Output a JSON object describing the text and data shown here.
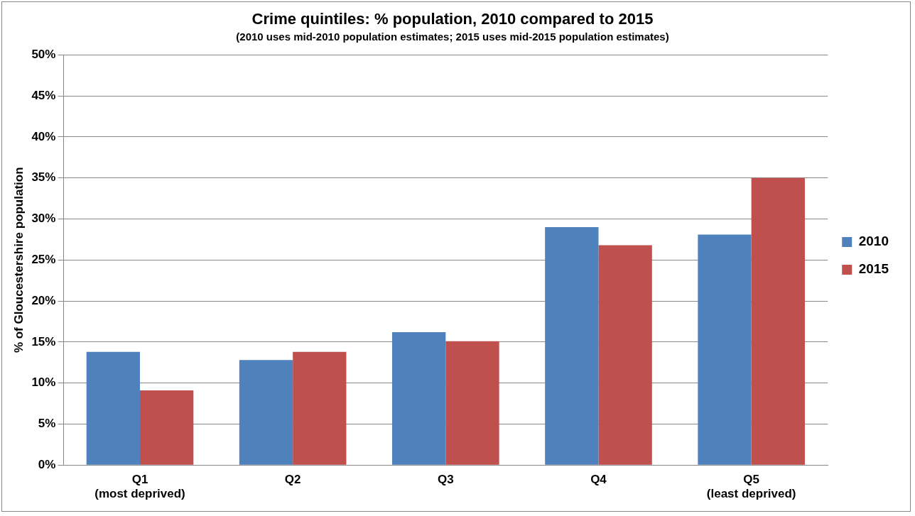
{
  "chart_data": {
    "type": "bar",
    "title": "Crime quintiles: % population, 2010 compared to 2015",
    "subtitle": "(2010 uses mid-2010 population estimates; 2015 uses mid-2015 population estimates)",
    "ylabel": "% of Gloucestershire population",
    "categories": [
      "Q1\n(most deprived)",
      "Q2",
      "Q3",
      "Q4",
      "Q5\n(least deprived)"
    ],
    "series": [
      {
        "name": "2010",
        "color": "#4f81bd",
        "values": [
          13.8,
          12.8,
          16.2,
          29.0,
          28.1
        ]
      },
      {
        "name": "2015",
        "color": "#c0504d",
        "values": [
          9.1,
          13.8,
          15.1,
          26.8,
          35.0
        ]
      }
    ],
    "ylim": [
      0,
      50
    ],
    "yticks": [
      {
        "value": 0,
        "label": "0%"
      },
      {
        "value": 5,
        "label": "5%"
      },
      {
        "value": 10,
        "label": "10%"
      },
      {
        "value": 15,
        "label": "15%"
      },
      {
        "value": 20,
        "label": "20%"
      },
      {
        "value": 25,
        "label": "25%"
      },
      {
        "value": 30,
        "label": "30%"
      },
      {
        "value": 35,
        "label": "35%"
      },
      {
        "value": 40,
        "label": "40%"
      },
      {
        "value": 45,
        "label": "45%"
      },
      {
        "value": 50,
        "label": "50%"
      }
    ],
    "grid": "y",
    "legend": "right"
  }
}
